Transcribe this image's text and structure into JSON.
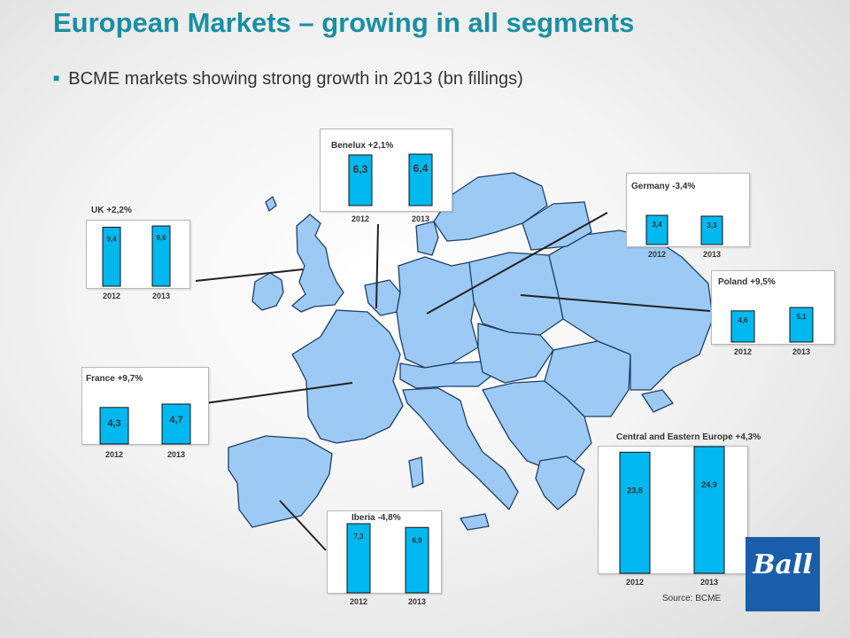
{
  "slide": {
    "title": "European Markets – growing in all segments",
    "bullet": "BCME markets showing strong growth in 2013 (bn fillings)",
    "source": "Source: BCME",
    "logo_text": "Ball"
  },
  "colors": {
    "title": "#1a8fa3",
    "bar": "#00b8f0",
    "map_land": "#9ccaf5",
    "map_border": "#1f3f66",
    "logo": "#1a5ea9"
  },
  "chart_data": [
    {
      "type": "bar",
      "id": "uk",
      "title": "UK +2,2%",
      "categories": [
        "2012",
        "2013"
      ],
      "values": [
        9.4,
        9.6
      ],
      "value_labels": [
        "9,4",
        "9,6"
      ]
    },
    {
      "type": "bar",
      "id": "benelux",
      "title": "Benelux  +2,1%",
      "categories": [
        "2012",
        "2013"
      ],
      "values": [
        6.3,
        6.4
      ],
      "value_labels": [
        "6,3",
        "6,4"
      ]
    },
    {
      "type": "bar",
      "id": "germany",
      "title": "Germany -3,4%",
      "categories": [
        "2012",
        "2013"
      ],
      "values": [
        3.4,
        3.3
      ],
      "value_labels": [
        "3,4",
        "3,3"
      ]
    },
    {
      "type": "bar",
      "id": "poland",
      "title": "Poland  +9,5%",
      "categories": [
        "2012",
        "2013"
      ],
      "values": [
        4.6,
        5.1
      ],
      "value_labels": [
        "4,6",
        "5,1"
      ]
    },
    {
      "type": "bar",
      "id": "france",
      "title": "France +9,7%",
      "categories": [
        "2012",
        "2013"
      ],
      "values": [
        4.3,
        4.7
      ],
      "value_labels": [
        "4,3",
        "4,7"
      ]
    },
    {
      "type": "bar",
      "id": "iberia",
      "title": "Iberia -4,8%",
      "categories": [
        "2012",
        "2013"
      ],
      "values": [
        7.3,
        6.9
      ],
      "value_labels": [
        "7,3",
        "6,9"
      ]
    },
    {
      "type": "bar",
      "id": "cee",
      "title": "Central and Eastern Europe +4,3%",
      "categories": [
        "2012",
        "2013"
      ],
      "values": [
        23.8,
        24.9
      ],
      "value_labels": [
        "23,8",
        "24,9"
      ]
    }
  ]
}
